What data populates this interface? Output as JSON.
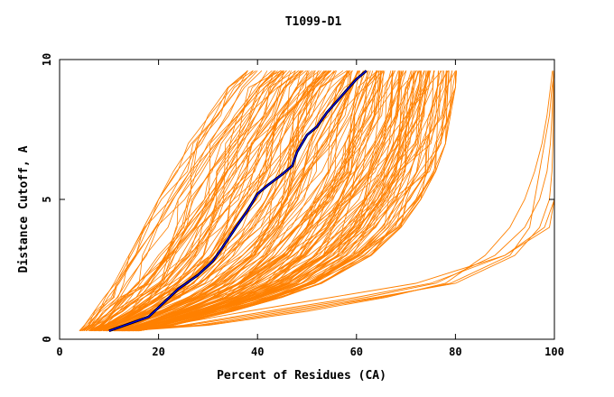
{
  "chart_data": {
    "type": "line",
    "title": "T1099-D1",
    "xlabel": "Percent of Residues (CA)",
    "ylabel": "Distance Cutoff, A",
    "xlim": [
      0,
      100
    ],
    "ylim": [
      0,
      10
    ],
    "x_ticks": [
      0,
      20,
      40,
      60,
      80,
      100
    ],
    "y_ticks": [
      0,
      5,
      10
    ],
    "grid": false,
    "legend": "none",
    "colors": {
      "bundle": "#ff8000",
      "highlight_outer": "#000000",
      "highlight_inner": "#0000ff",
      "axis": "#000000"
    },
    "bundle_band": {
      "y_levels": [
        0.3,
        0.5,
        1,
        1.5,
        2,
        3,
        4,
        5,
        6,
        7,
        8,
        9,
        9.6
      ],
      "x_left": [
        4,
        5,
        7,
        9,
        11,
        14,
        17,
        20,
        23,
        26,
        30,
        34,
        38
      ],
      "x_right": [
        16,
        23,
        35,
        45,
        53,
        63,
        69,
        73,
        76,
        78,
        79,
        80,
        80
      ],
      "count": 170
    },
    "outlier_series": [
      {
        "x": [
          14,
          30,
          50,
          66,
          78,
          86,
          91,
          94,
          96,
          97.5,
          98.5,
          99.2,
          99.6
        ],
        "y": [
          0.3,
          0.5,
          1,
          1.5,
          2,
          3,
          4,
          5,
          6,
          7,
          8,
          9,
          9.6
        ]
      },
      {
        "x": [
          12,
          26,
          44,
          62,
          76,
          88,
          94,
          97,
          98.5,
          99.2,
          99.5,
          99.7,
          99.8
        ],
        "y": [
          0.3,
          0.5,
          1,
          1.5,
          2,
          3,
          4,
          5,
          6,
          7,
          8,
          9,
          9.6
        ]
      },
      {
        "x": [
          13,
          28,
          46,
          64,
          80,
          92,
          97,
          99,
          99.5,
          99.7,
          99.8,
          99.9,
          100
        ],
        "y": [
          0.3,
          0.5,
          1,
          1.5,
          2,
          3,
          4,
          5,
          6,
          7,
          8,
          9,
          9.6
        ]
      },
      {
        "x": [
          12,
          25,
          42,
          60,
          75,
          90,
          98,
          100,
          100,
          100,
          100,
          100,
          100
        ],
        "y": [
          0.3,
          0.5,
          1,
          1.5,
          2,
          3,
          4,
          5,
          6,
          7,
          8,
          9,
          9.6
        ]
      },
      {
        "x": [
          13,
          29,
          48,
          65,
          79,
          91,
          95,
          96,
          97,
          98,
          99,
          99.5,
          100
        ],
        "y": [
          0.3,
          0.5,
          1,
          1.5,
          2,
          3,
          4,
          5,
          6,
          7,
          8,
          9,
          9.6
        ]
      },
      {
        "x": [
          11,
          22,
          38,
          55,
          72,
          90,
          99,
          100,
          100,
          100,
          100,
          100,
          100
        ],
        "y": [
          0.3,
          0.5,
          1,
          1.5,
          2,
          3,
          4,
          5,
          6,
          7,
          8,
          9,
          9.6
        ]
      }
    ],
    "highlight_series": {
      "x": [
        10,
        18,
        24,
        28,
        31,
        33,
        36,
        38,
        40,
        42,
        45,
        47,
        48,
        50,
        52,
        54,
        56,
        58,
        60,
        62
      ],
      "y": [
        0.3,
        0.8,
        1.8,
        2.3,
        2.8,
        3.3,
        4.1,
        4.6,
        5.2,
        5.5,
        5.9,
        6.2,
        6.7,
        7.3,
        7.6,
        8.1,
        8.5,
        8.9,
        9.3,
        9.6
      ]
    }
  }
}
